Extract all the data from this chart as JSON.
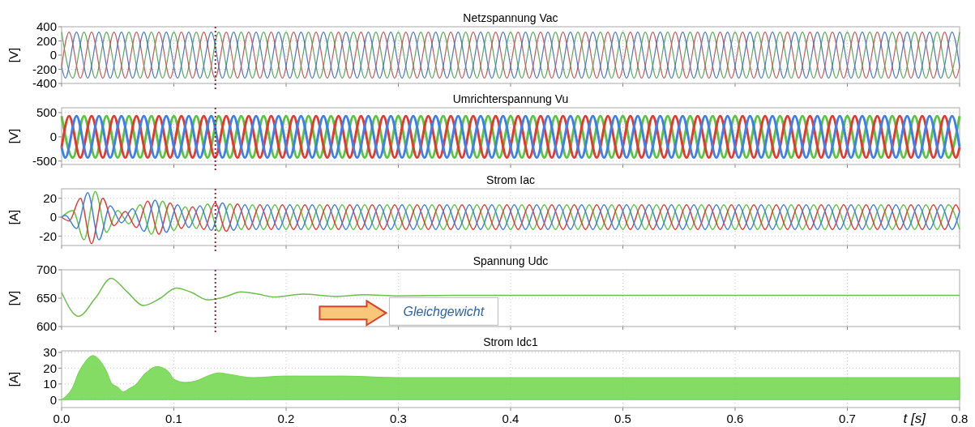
{
  "chart_data": [
    {
      "type": "line",
      "title": "Netzspannung Vac",
      "ylabel": "[V]",
      "xlim": [
        0,
        0.8
      ],
      "xticks": [
        0,
        0.1,
        0.2,
        0.3,
        0.4,
        0.5,
        0.6,
        0.7,
        0.8
      ],
      "ylim": [
        -400,
        400
      ],
      "yticks": [
        -400,
        -200,
        0,
        200,
        400
      ],
      "grid": true,
      "tick_labels": "y",
      "ref_lines": [
        {
          "axis": "x",
          "value": 0.137,
          "color": "#8b2a3a",
          "line_style": "dotted"
        }
      ],
      "series": [
        {
          "color": "#5aaa5a",
          "x": [
            0,
            0.01,
            0.02,
            0.03,
            0.04,
            0.05,
            0.06,
            0.07,
            0.08,
            0.09,
            0.1,
            0.11,
            0.12,
            0.13,
            0.14,
            0.15,
            0.16,
            0.17,
            0.18,
            0.19,
            0.2,
            0.21,
            0.22,
            0.23,
            0.24,
            0.25,
            0.26,
            0.27,
            0.28,
            0.29,
            0.3,
            0.31,
            0.32,
            0.33,
            0.34,
            0.35,
            0.36,
            0.37,
            0.38,
            0.39,
            0.4,
            0.41,
            0.42,
            0.43,
            0.44,
            0.45,
            0.46,
            0.47,
            0.48,
            0.49,
            0.5,
            0.51,
            0.52,
            0.53,
            0.54,
            0.55,
            0.56,
            0.57,
            0.58,
            0.59,
            0.6,
            0.61,
            0.62,
            0.63,
            0.64,
            0.65,
            0.66,
            0.67,
            0.68,
            0.69,
            0.7,
            0.71,
            0.72,
            0.73,
            0.74,
            0.75,
            0.76,
            0.77,
            0.78,
            0.79,
            0.8
          ],
          "values": [
            325,
            -325,
            325,
            -325,
            325,
            -325,
            325,
            -325,
            325,
            -325,
            325,
            -325,
            325,
            -325,
            325,
            -325,
            325,
            -325,
            325,
            -325,
            325,
            -325,
            325,
            -325,
            325,
            -325,
            325,
            -325,
            325,
            -325,
            325,
            -325,
            325,
            -325,
            325,
            -325,
            325,
            -325,
            325,
            -325,
            325,
            -325,
            325,
            -325,
            325,
            -325,
            325,
            -325,
            325,
            -325,
            325,
            -325,
            325,
            -325,
            325,
            -325,
            325,
            -325,
            325,
            -325,
            325,
            -325,
            325,
            -325,
            325,
            -325,
            325,
            -325,
            325,
            -325,
            325,
            -325,
            325,
            -325,
            325,
            -325,
            325,
            -325,
            325,
            -325,
            325
          ]
        },
        {
          "color": "#c85a5a",
          "x": [
            0,
            0.0067,
            0.0167,
            0.0267,
            0.0367,
            0.0467,
            0.0567,
            0.0667,
            0.0767,
            0.0867,
            0.0967,
            0.1067,
            0.1167,
            0.1267,
            0.1367,
            0.1467,
            0.1567,
            0.1667,
            0.1767,
            0.1867,
            0.1967,
            0.2067,
            0.2167,
            0.2267,
            0.2367,
            0.2467,
            0.2567,
            0.2667,
            0.2767,
            0.2867,
            0.2967,
            0.3067,
            0.3167,
            0.3267,
            0.3367,
            0.3467,
            0.3567,
            0.3667,
            0.3767,
            0.3867,
            0.3967,
            0.4067,
            0.4167,
            0.4267,
            0.4367,
            0.4467,
            0.4567,
            0.4667,
            0.4767,
            0.4867,
            0.4967,
            0.5067,
            0.5167,
            0.5267,
            0.5367,
            0.5467,
            0.5567,
            0.5667,
            0.5767,
            0.5867,
            0.5967,
            0.6067,
            0.6167,
            0.6267,
            0.6367,
            0.6467,
            0.6567,
            0.6667,
            0.6767,
            0.6867,
            0.6967,
            0.7067,
            0.7167,
            0.7267,
            0.7367,
            0.7467,
            0.7567,
            0.7667,
            0.7767,
            0.7867,
            0.7967,
            0.8
          ],
          "values": [
            -162,
            325,
            -325,
            325,
            -325,
            325,
            -325,
            325,
            -325,
            325,
            -325,
            325,
            -325,
            325,
            -325,
            325,
            -325,
            325,
            -325,
            325,
            -325,
            325,
            -325,
            325,
            -325,
            325,
            -325,
            325,
            -325,
            325,
            -325,
            325,
            -325,
            325,
            -325,
            325,
            -325,
            325,
            -325,
            325,
            -325,
            325,
            -325,
            325,
            -325,
            325,
            -325,
            325,
            -325,
            325,
            -325,
            325,
            -325,
            325,
            -325,
            325,
            -325,
            325,
            -325,
            325,
            -325,
            325,
            -325,
            325,
            -325,
            325,
            -325,
            325,
            -325,
            325,
            -325,
            325,
            -325,
            325,
            -325,
            325,
            -325,
            325,
            -325,
            325,
            -325,
            -162
          ]
        },
        {
          "color": "#4a78c8",
          "x": [
            0,
            0.0033,
            0.0133,
            0.0233,
            0.0333,
            0.0433,
            0.0533,
            0.0633,
            0.0733,
            0.0833,
            0.0933,
            0.1033,
            0.1133,
            0.1233,
            0.1333,
            0.1433,
            0.1533,
            0.1633,
            0.1733,
            0.1833,
            0.1933,
            0.2033,
            0.2133,
            0.2233,
            0.2333,
            0.2433,
            0.2533,
            0.2633,
            0.2733,
            0.2833,
            0.2933,
            0.3033,
            0.3133,
            0.3233,
            0.3333,
            0.3433,
            0.3533,
            0.3633,
            0.3733,
            0.3833,
            0.3933,
            0.4033,
            0.4133,
            0.4233,
            0.4333,
            0.4433,
            0.4533,
            0.4633,
            0.4733,
            0.4833,
            0.4933,
            0.5033,
            0.5133,
            0.5233,
            0.5333,
            0.5433,
            0.5533,
            0.5633,
            0.5733,
            0.5833,
            0.5933,
            0.6033,
            0.6133,
            0.6233,
            0.6333,
            0.6433,
            0.6533,
            0.6633,
            0.6733,
            0.6833,
            0.6933,
            0.7033,
            0.7133,
            0.7233,
            0.7333,
            0.7433,
            0.7533,
            0.7633,
            0.7733,
            0.7833,
            0.7933,
            0.8
          ],
          "values": [
            -162,
            -325,
            325,
            -325,
            325,
            -325,
            325,
            -325,
            325,
            -325,
            325,
            -325,
            325,
            -325,
            325,
            -325,
            325,
            -325,
            325,
            -325,
            325,
            -325,
            325,
            -325,
            325,
            -325,
            325,
            -325,
            325,
            -325,
            325,
            -325,
            325,
            -325,
            325,
            -325,
            325,
            -325,
            325,
            -325,
            325,
            -325,
            325,
            -325,
            325,
            -325,
            325,
            -325,
            325,
            -325,
            325,
            -325,
            325,
            -325,
            325,
            -325,
            325,
            -325,
            325,
            -325,
            325,
            -325,
            325,
            -325,
            325,
            -325,
            325,
            -325,
            325,
            -325,
            325,
            -325,
            325,
            -325,
            325,
            -325,
            325,
            -325,
            325,
            -325,
            325,
            -162
          ]
        }
      ]
    },
    {
      "type": "line",
      "title": "Umrichterspannung Vu",
      "ylabel": "[V]",
      "xlim": [
        0,
        0.8
      ],
      "xticks": [
        0,
        0.1,
        0.2,
        0.3,
        0.4,
        0.5,
        0.6,
        0.7,
        0.8
      ],
      "ylim": [
        -570,
        600
      ],
      "yticks": [
        -500,
        0,
        500
      ],
      "grid": true,
      "tick_labels": "y",
      "ref_lines": [
        {
          "axis": "x",
          "value": 0.137,
          "color": "#8b2a3a",
          "line_style": "dotted"
        }
      ],
      "series": [
        {
          "color": "#58c63c",
          "x": [
            0,
            0.01,
            0.02,
            0.03,
            0.04,
            0.05,
            0.06,
            0.07,
            0.08,
            0.09,
            0.1,
            0.11,
            0.12,
            0.13,
            0.14,
            0.15,
            0.16,
            0.17,
            0.18,
            0.19,
            0.2,
            0.21,
            0.22,
            0.23,
            0.24,
            0.25,
            0.26,
            0.27,
            0.28,
            0.29,
            0.3,
            0.31,
            0.32,
            0.33,
            0.34,
            0.35,
            0.36,
            0.37,
            0.38,
            0.39,
            0.4,
            0.41,
            0.42,
            0.43,
            0.44,
            0.45,
            0.46,
            0.47,
            0.48,
            0.49,
            0.5,
            0.51,
            0.52,
            0.53,
            0.54,
            0.55,
            0.56,
            0.57,
            0.58,
            0.59,
            0.6,
            0.61,
            0.62,
            0.63,
            0.64,
            0.65,
            0.66,
            0.67,
            0.68,
            0.69,
            0.7,
            0.71,
            0.72,
            0.73,
            0.74,
            0.75,
            0.76,
            0.77,
            0.78,
            0.79,
            0.8
          ],
          "values": [
            430,
            -430,
            430,
            -430,
            430,
            -430,
            430,
            -430,
            430,
            -430,
            430,
            -430,
            430,
            -430,
            430,
            -430,
            430,
            -430,
            430,
            -430,
            430,
            -430,
            430,
            -430,
            430,
            -430,
            430,
            -430,
            430,
            -430,
            430,
            -430,
            430,
            -430,
            430,
            -430,
            430,
            -430,
            430,
            -430,
            430,
            -430,
            430,
            -430,
            430,
            -430,
            430,
            -430,
            430,
            -430,
            430,
            -430,
            430,
            -430,
            430,
            -430,
            430,
            -430,
            430,
            -430,
            430,
            -430,
            430,
            -430,
            430,
            -430,
            430,
            -430,
            430,
            -430,
            430,
            -430,
            430,
            -430,
            430,
            -430,
            430,
            -430,
            430,
            -430,
            430
          ]
        },
        {
          "color": "#e8382e",
          "x": [
            0,
            0.0067,
            0.0167,
            0.0267,
            0.0367,
            0.0467,
            0.0567,
            0.0667,
            0.0767,
            0.0867,
            0.0967,
            0.1067,
            0.1167,
            0.1267,
            0.1367,
            0.1467,
            0.1567,
            0.1667,
            0.1767,
            0.1867,
            0.1967,
            0.2067,
            0.2167,
            0.2267,
            0.2367,
            0.2467,
            0.2567,
            0.2667,
            0.2767,
            0.2867,
            0.2967,
            0.3067,
            0.3167,
            0.3267,
            0.3367,
            0.3467,
            0.3567,
            0.3667,
            0.3767,
            0.3867,
            0.3967,
            0.4067,
            0.4167,
            0.4267,
            0.4367,
            0.4467,
            0.4567,
            0.4667,
            0.4767,
            0.4867,
            0.4967,
            0.5067,
            0.5167,
            0.5267,
            0.5367,
            0.5467,
            0.5567,
            0.5667,
            0.5767,
            0.5867,
            0.5967,
            0.6067,
            0.6167,
            0.6267,
            0.6367,
            0.6467,
            0.6567,
            0.6667,
            0.6767,
            0.6867,
            0.6967,
            0.7067,
            0.7167,
            0.7267,
            0.7367,
            0.7467,
            0.7567,
            0.7667,
            0.7767,
            0.7867,
            0.7967,
            0.8
          ],
          "values": [
            -215,
            430,
            -430,
            430,
            -430,
            430,
            -430,
            430,
            -430,
            430,
            -430,
            430,
            -430,
            430,
            -430,
            430,
            -430,
            430,
            -430,
            430,
            -430,
            430,
            -430,
            430,
            -430,
            430,
            -430,
            430,
            -430,
            430,
            -430,
            430,
            -430,
            430,
            -430,
            430,
            -430,
            430,
            -430,
            430,
            -430,
            430,
            -430,
            430,
            -430,
            430,
            -430,
            430,
            -430,
            430,
            -430,
            430,
            -430,
            430,
            -430,
            430,
            -430,
            430,
            -430,
            430,
            -430,
            430,
            -430,
            430,
            -430,
            430,
            -430,
            430,
            -430,
            430,
            -430,
            430,
            -430,
            430,
            -430,
            430,
            -430,
            430,
            -430,
            430,
            -430,
            -215
          ]
        },
        {
          "color": "#3d7ef0",
          "x": [
            0,
            0.0033,
            0.0133,
            0.0233,
            0.0333,
            0.0433,
            0.0533,
            0.0633,
            0.0733,
            0.0833,
            0.0933,
            0.1033,
            0.1133,
            0.1233,
            0.1333,
            0.1433,
            0.1533,
            0.1633,
            0.1733,
            0.1833,
            0.1933,
            0.2033,
            0.2133,
            0.2233,
            0.2333,
            0.2433,
            0.2533,
            0.2633,
            0.2733,
            0.2833,
            0.2933,
            0.3033,
            0.3133,
            0.3233,
            0.3333,
            0.3433,
            0.3533,
            0.3633,
            0.3733,
            0.3833,
            0.3933,
            0.4033,
            0.4133,
            0.4233,
            0.4333,
            0.4433,
            0.4533,
            0.4633,
            0.4733,
            0.4833,
            0.4933,
            0.5033,
            0.5133,
            0.5233,
            0.5333,
            0.5433,
            0.5533,
            0.5633,
            0.5733,
            0.5833,
            0.5933,
            0.6033,
            0.6133,
            0.6233,
            0.6333,
            0.6433,
            0.6533,
            0.6633,
            0.6733,
            0.6833,
            0.6933,
            0.7033,
            0.7133,
            0.7233,
            0.7333,
            0.7433,
            0.7533,
            0.7633,
            0.7733,
            0.7833,
            0.7933,
            0.8
          ],
          "values": [
            -215,
            -430,
            430,
            -430,
            430,
            -430,
            430,
            -430,
            430,
            -430,
            430,
            -430,
            430,
            -430,
            430,
            -430,
            430,
            -430,
            430,
            -430,
            430,
            -430,
            430,
            -430,
            430,
            -430,
            430,
            -430,
            430,
            -430,
            430,
            -430,
            430,
            -430,
            430,
            -430,
            430,
            -430,
            430,
            -430,
            430,
            -430,
            430,
            -430,
            430,
            -430,
            430,
            -430,
            430,
            -430,
            430,
            -430,
            430,
            -430,
            430,
            -430,
            430,
            -430,
            430,
            -430,
            430,
            -430,
            430,
            -430,
            430,
            -430,
            430,
            -430,
            430,
            -430,
            430,
            -430,
            430,
            -430,
            430,
            -430,
            430,
            -430,
            430,
            -430,
            430,
            -215
          ]
        }
      ]
    },
    {
      "type": "line",
      "title": "Strom Iac",
      "ylabel": "[A]",
      "xlim": [
        0,
        0.8
      ],
      "xticks": [
        0,
        0.1,
        0.2,
        0.3,
        0.4,
        0.5,
        0.6,
        0.7,
        0.8
      ],
      "ylim": [
        -30,
        30
      ],
      "yticks": [
        -20,
        0,
        20
      ],
      "grid": true,
      "tick_labels": "y",
      "ref_lines": [
        {
          "axis": "x",
          "value": 0.137,
          "color": "#8b2a3a",
          "line_style": "dotted"
        }
      ],
      "series": [
        {
          "color": "#5cc544",
          "x": [
            0,
            0.01,
            0.02,
            0.03,
            0.04,
            0.05,
            0.06,
            0.07,
            0.08,
            0.09,
            0.1,
            0.11,
            0.12,
            0.13,
            0.14,
            0.15,
            0.16,
            0.17,
            0.18,
            0.19,
            0.2,
            0.21,
            0.22,
            0.23,
            0.24,
            0.25,
            0.26,
            0.27,
            0.28,
            0.29,
            0.3,
            0.31,
            0.32,
            0.33,
            0.34,
            0.35,
            0.36,
            0.37,
            0.38,
            0.39,
            0.4,
            0.41,
            0.42,
            0.43,
            0.44,
            0.45,
            0.46,
            0.47,
            0.48,
            0.49,
            0.5,
            0.51,
            0.52,
            0.53,
            0.54,
            0.55,
            0.56,
            0.57,
            0.58,
            0.59,
            0.6,
            0.61,
            0.62,
            0.63,
            0.64,
            0.65,
            0.66,
            0.67,
            0.68,
            0.69,
            0.7,
            0.71,
            0.72,
            0.73,
            0.74,
            0.75,
            0.76,
            0.77,
            0.78,
            0.79,
            0.8
          ],
          "values": [
            0,
            7,
            -24,
            27,
            -16,
            7,
            -7,
            13,
            -18,
            17,
            -14,
            11,
            -12,
            14,
            -15,
            14,
            -13,
            13,
            -13,
            13,
            -13,
            13,
            -13,
            13,
            -13,
            13,
            -13,
            13,
            -13,
            13,
            -13,
            13,
            -13,
            13,
            -13,
            13,
            -13,
            13,
            -13,
            13,
            -13,
            13,
            -13,
            13,
            -13,
            13,
            -13,
            13,
            -13,
            13,
            -13,
            13,
            -13,
            13,
            -13,
            13,
            -13,
            13,
            -13,
            13,
            -13,
            13,
            -13,
            13,
            -13,
            13,
            -13,
            13,
            -13,
            13,
            -13,
            13,
            -13,
            13,
            -13,
            13,
            -13,
            13,
            -13,
            13,
            -13
          ]
        },
        {
          "color": "#e63a32",
          "x": [
            0,
            0.0067,
            0.0167,
            0.0267,
            0.0367,
            0.0467,
            0.0567,
            0.0667,
            0.0767,
            0.0867,
            0.0967,
            0.1067,
            0.1167,
            0.1267,
            0.1367,
            0.1467,
            0.1567,
            0.1667,
            0.1767,
            0.1867,
            0.1967,
            0.2067,
            0.2167,
            0.2267,
            0.2367,
            0.2467,
            0.2567,
            0.2667,
            0.2767,
            0.2867,
            0.2967,
            0.3067,
            0.3167,
            0.3267,
            0.3367,
            0.3467,
            0.3567,
            0.3667,
            0.3767,
            0.3867,
            0.3967,
            0.4067,
            0.4167,
            0.4267,
            0.4367,
            0.4467,
            0.4567,
            0.4667,
            0.4767,
            0.4867,
            0.4967,
            0.5067,
            0.5167,
            0.5267,
            0.5367,
            0.5467,
            0.5567,
            0.5667,
            0.5767,
            0.5867,
            0.5967,
            0.6067,
            0.6167,
            0.6267,
            0.6367,
            0.6467,
            0.6567,
            0.6667,
            0.6767,
            0.6867,
            0.6967,
            0.7067,
            0.7167,
            0.7267,
            0.7367,
            0.7467,
            0.7567,
            0.7667,
            0.7767,
            0.7867,
            0.7967,
            0.8
          ],
          "values": [
            0,
            -4,
            20,
            -28,
            20,
            -9,
            6,
            -11,
            17,
            -18,
            15,
            -12,
            11,
            -13,
            15,
            -15,
            14,
            -13,
            13,
            -13,
            13,
            -13,
            13,
            -13,
            13,
            -13,
            13,
            -13,
            13,
            -13,
            13,
            -13,
            13,
            -13,
            13,
            -13,
            13,
            -13,
            13,
            -13,
            13,
            -13,
            13,
            -13,
            13,
            -13,
            13,
            -13,
            13,
            -13,
            13,
            -13,
            13,
            -13,
            13,
            -13,
            13,
            -13,
            13,
            -13,
            13,
            -13,
            13,
            -13,
            13,
            -13,
            13,
            -13,
            13,
            -13,
            13,
            -13,
            13,
            -13,
            13,
            -13,
            13,
            -13,
            13,
            -13,
            13,
            6
          ]
        },
        {
          "color": "#3f7fe6",
          "x": [
            0,
            0.0033,
            0.0133,
            0.0233,
            0.0333,
            0.0433,
            0.0533,
            0.0633,
            0.0733,
            0.0833,
            0.0933,
            0.1033,
            0.1133,
            0.1233,
            0.1333,
            0.1433,
            0.1533,
            0.1633,
            0.1733,
            0.1833,
            0.1933,
            0.2033,
            0.2133,
            0.2233,
            0.2333,
            0.2433,
            0.2533,
            0.2633,
            0.2733,
            0.2833,
            0.2933,
            0.3033,
            0.3133,
            0.3233,
            0.3333,
            0.3433,
            0.3533,
            0.3633,
            0.3733,
            0.3833,
            0.3933,
            0.4033,
            0.4133,
            0.4233,
            0.4333,
            0.4433,
            0.4533,
            0.4633,
            0.4733,
            0.4833,
            0.4933,
            0.5033,
            0.5133,
            0.5233,
            0.5333,
            0.5433,
            0.5533,
            0.5633,
            0.5733,
            0.5833,
            0.5933,
            0.6033,
            0.6133,
            0.6233,
            0.6333,
            0.6433,
            0.6533,
            0.6633,
            0.6733,
            0.6833,
            0.6933,
            0.7033,
            0.7133,
            0.7233,
            0.7333,
            0.7433,
            0.7533,
            0.7633,
            0.7733,
            0.7833,
            0.7933,
            0.8
          ],
          "values": [
            0,
            2,
            -12,
            26,
            -24,
            12,
            -6,
            9,
            -15,
            18,
            -16,
            13,
            -11,
            12,
            -14,
            15,
            -14,
            13,
            -13,
            13,
            -13,
            13,
            -13,
            13,
            -13,
            13,
            -13,
            13,
            -13,
            13,
            -13,
            13,
            -13,
            13,
            -13,
            13,
            -13,
            13,
            -13,
            13,
            -13,
            13,
            -13,
            13,
            -13,
            13,
            -13,
            13,
            -13,
            13,
            -13,
            13,
            -13,
            13,
            -13,
            13,
            -13,
            13,
            -13,
            13,
            -13,
            13,
            -13,
            13,
            -13,
            13,
            -13,
            13,
            -13,
            13,
            -13,
            13,
            -13,
            13,
            -13,
            13,
            -13,
            13,
            -13,
            13,
            -13,
            6
          ]
        }
      ]
    },
    {
      "type": "line",
      "title": "Spannung Udc",
      "ylabel": "[V]",
      "xlim": [
        0,
        0.8
      ],
      "xticks": [
        0,
        0.1,
        0.2,
        0.3,
        0.4,
        0.5,
        0.6,
        0.7,
        0.8
      ],
      "ylim": [
        600,
        700
      ],
      "yticks": [
        600,
        650,
        700
      ],
      "grid": true,
      "tick_labels": "y",
      "ref_lines": [
        {
          "axis": "x",
          "value": 0.137,
          "color": "#8b2a3a",
          "line_style": "dotted"
        }
      ],
      "annotations": [
        "Gleichgewicht"
      ],
      "x": [
        0,
        0.015,
        0.03,
        0.044,
        0.058,
        0.073,
        0.088,
        0.102,
        0.116,
        0.13,
        0.145,
        0.16,
        0.175,
        0.19,
        0.215,
        0.245,
        0.27,
        0.3,
        0.35,
        0.4,
        0.5,
        0.6,
        0.7,
        0.8
      ],
      "series": [
        {
          "color": "#6cbf4a",
          "values": [
            660,
            618,
            650,
            685,
            662,
            637,
            650,
            668,
            660,
            647,
            652,
            661,
            657,
            652,
            657,
            653,
            656,
            654,
            655,
            655,
            655,
            655,
            655,
            655
          ]
        }
      ]
    },
    {
      "type": "area",
      "title": "Strom Idc1",
      "ylabel": "[A]",
      "xlabel": "t [s]",
      "xlim": [
        0,
        0.8
      ],
      "xticks": [
        {
          "value": 0,
          "label": "0.0"
        },
        0.1,
        0.2,
        0.3,
        0.4,
        0.5,
        0.6,
        0.7,
        0.8
      ],
      "ylim": [
        -5,
        31
      ],
      "yticks": [
        0,
        10,
        20,
        30
      ],
      "grid": true,
      "x": [
        0,
        0.005,
        0.01,
        0.015,
        0.02,
        0.028,
        0.035,
        0.04,
        0.045,
        0.05,
        0.055,
        0.06,
        0.065,
        0.075,
        0.085,
        0.095,
        0.1,
        0.11,
        0.12,
        0.13,
        0.14,
        0.15,
        0.17,
        0.2,
        0.25,
        0.3,
        0.4,
        0.5,
        0.6,
        0.7,
        0.8
      ],
      "series": [
        {
          "color": "#6ed64a",
          "values": [
            0,
            3,
            8,
            17,
            23,
            28,
            24,
            18,
            10,
            8,
            5,
            7,
            9,
            17,
            21,
            18,
            13,
            11,
            12,
            15,
            17,
            16,
            14,
            15,
            15,
            14,
            14,
            14,
            14,
            14,
            14
          ]
        }
      ]
    }
  ]
}
